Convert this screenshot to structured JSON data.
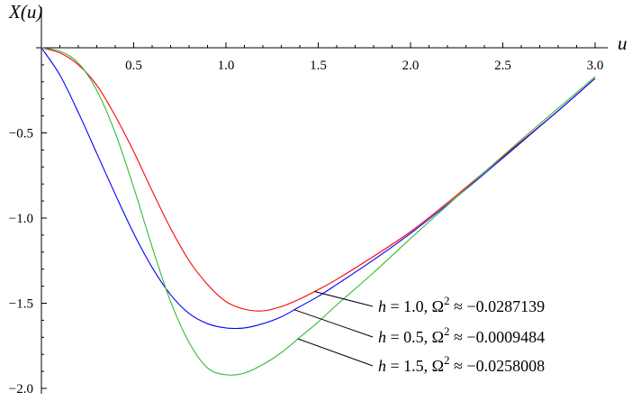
{
  "chart_data": {
    "type": "line",
    "title": "",
    "xlabel": "u",
    "ylabel": "X(u)",
    "xlim": [
      0,
      3.05
    ],
    "ylim": [
      -2.0,
      0
    ],
    "x_ticks": [
      0.5,
      1.0,
      1.5,
      2.0,
      2.5,
      3.0
    ],
    "x_tick_labels": [
      "0.5",
      "1.0",
      "1.5",
      "2.0",
      "2.5",
      "3.0"
    ],
    "y_ticks": [
      -0.5,
      -1.0,
      -1.5,
      -2.0
    ],
    "y_tick_labels": [
      "−0.5",
      "−1.0",
      "−1.5",
      "−2.0"
    ],
    "grid": false,
    "legend_placement": "bottom-right (callout labels with leader lines)",
    "series": [
      {
        "name": "h = 1.0, Ω² ≈ −0.0287139",
        "label_parts": {
          "h": "h",
          "h_value": " = 1.0, ",
          "omega": "Ω",
          "sup": "2",
          "rest": " ≈ −0.0287139"
        },
        "color": "#ff0000",
        "x": [
          0,
          0.1,
          0.2,
          0.3,
          0.4,
          0.5,
          0.6,
          0.7,
          0.8,
          0.9,
          1.0,
          1.1,
          1.2,
          1.3,
          1.4,
          1.5,
          1.6,
          1.8,
          2.0,
          2.2,
          2.4,
          2.6,
          2.8,
          3.0
        ],
        "y": [
          0,
          -0.03,
          -0.1,
          -0.22,
          -0.4,
          -0.61,
          -0.84,
          -1.06,
          -1.25,
          -1.39,
          -1.49,
          -1.535,
          -1.545,
          -1.52,
          -1.475,
          -1.42,
          -1.36,
          -1.225,
          -1.08,
          -0.91,
          -0.73,
          -0.55,
          -0.37,
          -0.18
        ]
      },
      {
        "name": "h = 0.5, Ω² ≈ −0.0009484",
        "label_parts": {
          "h": "h",
          "h_value": " = 0.5, ",
          "omega": "Ω",
          "sup": "2",
          "rest": " ≈ −0.0009484"
        },
        "color": "#0000ff",
        "x": [
          0,
          0.1,
          0.2,
          0.3,
          0.4,
          0.5,
          0.6,
          0.7,
          0.8,
          0.9,
          1.0,
          1.1,
          1.2,
          1.3,
          1.4,
          1.5,
          1.6,
          1.8,
          2.0,
          2.2,
          2.4,
          2.6,
          2.8,
          3.0
        ],
        "y": [
          0,
          -0.16,
          -0.38,
          -0.62,
          -0.86,
          -1.09,
          -1.29,
          -1.45,
          -1.56,
          -1.62,
          -1.645,
          -1.645,
          -1.62,
          -1.58,
          -1.52,
          -1.46,
          -1.39,
          -1.245,
          -1.09,
          -0.92,
          -0.74,
          -0.555,
          -0.37,
          -0.18
        ]
      },
      {
        "name": "h = 1.5, Ω² ≈ −0.0258008",
        "label_parts": {
          "h": "h",
          "h_value": " = 1.5, ",
          "omega": "Ω",
          "sup": "2",
          "rest": " ≈ −0.0258008"
        },
        "color": "#33bb33",
        "x": [
          0,
          0.1,
          0.2,
          0.3,
          0.4,
          0.5,
          0.6,
          0.7,
          0.8,
          0.9,
          1.0,
          1.1,
          1.2,
          1.3,
          1.4,
          1.5,
          1.6,
          1.8,
          2.0,
          2.2,
          2.4,
          2.6,
          2.8,
          3.0
        ],
        "y": [
          0,
          -0.02,
          -0.09,
          -0.25,
          -0.5,
          -0.82,
          -1.17,
          -1.49,
          -1.73,
          -1.88,
          -1.92,
          -1.91,
          -1.86,
          -1.79,
          -1.7,
          -1.61,
          -1.51,
          -1.32,
          -1.12,
          -0.925,
          -0.73,
          -0.54,
          -0.355,
          -0.17
        ]
      }
    ]
  }
}
